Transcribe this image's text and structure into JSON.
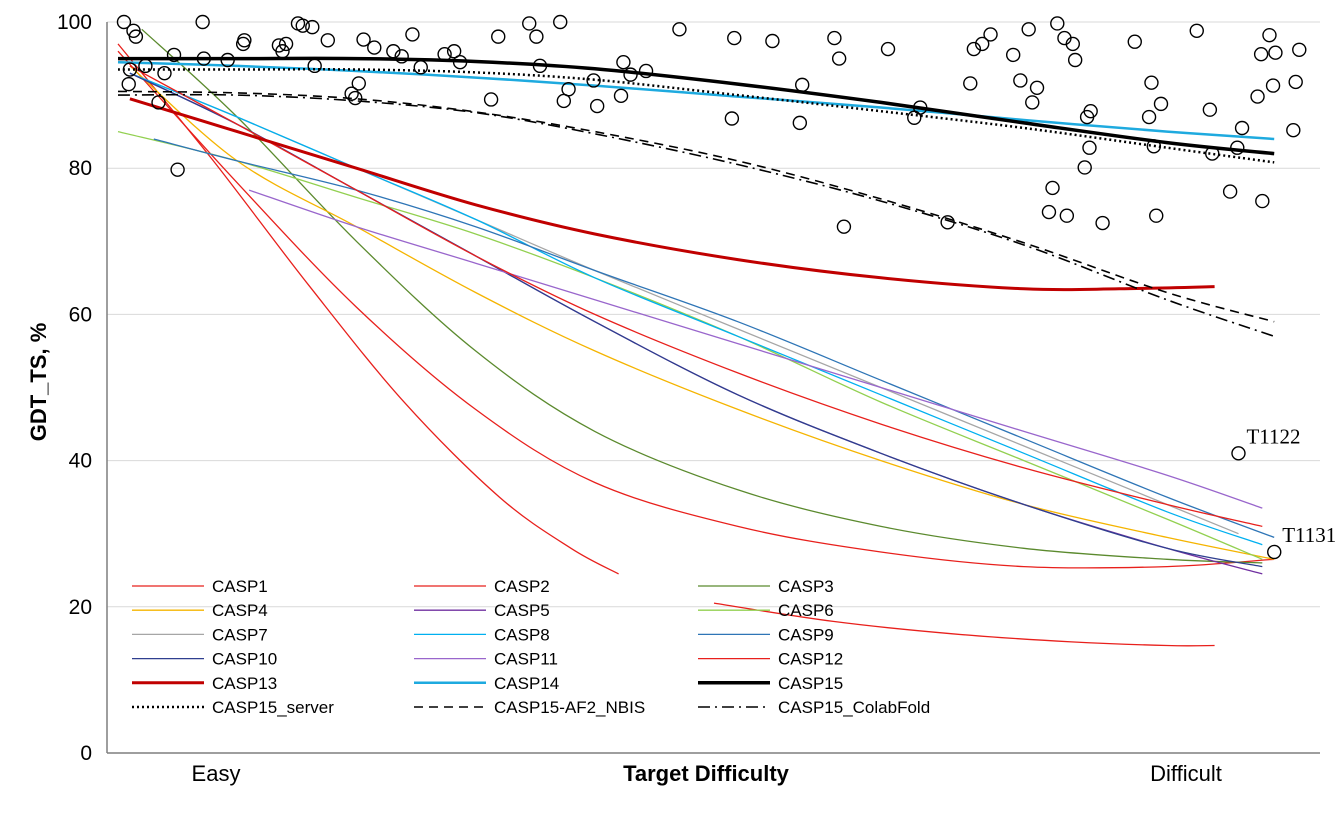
{
  "chart_data": {
    "type": "scatter",
    "ylabel": "GDT_TS, %",
    "xlabel": "Target Difficulty",
    "x_categories": [
      "Easy",
      "Difficult"
    ],
    "x_range": [
      0,
      100
    ],
    "ylim": [
      0,
      100
    ],
    "yticks": [
      0,
      20,
      40,
      60,
      80,
      100
    ],
    "grid": "horizontal",
    "legend_position": "bottom-left",
    "annotations": [
      {
        "text": "T1122",
        "x": 94.0,
        "y": 41
      },
      {
        "text": "T1131",
        "x": 97.0,
        "y": 27.5
      }
    ],
    "series": [
      {
        "name": "CASP1",
        "color": "#e8201c",
        "width": 1.3,
        "dash": "solid",
        "points": [
          [
            0,
            97
          ],
          [
            8,
            81
          ],
          [
            16,
            64
          ],
          [
            24,
            48
          ],
          [
            32,
            35
          ],
          [
            38,
            28
          ],
          [
            42,
            24.5
          ]
        ]
      },
      {
        "name": "CASP2",
        "color": "#e8201c",
        "width": 1.3,
        "dash": "solid",
        "points": [
          [
            0,
            96
          ],
          [
            10,
            78
          ],
          [
            20,
            61
          ],
          [
            30,
            47
          ],
          [
            40,
            37
          ],
          [
            52,
            31
          ],
          [
            64,
            27.5
          ],
          [
            76,
            25.5
          ],
          [
            88,
            25.5
          ],
          [
            97,
            26.5
          ]
        ]
      },
      {
        "name": "CASP3",
        "color": "#5b8a2e",
        "width": 1.3,
        "dash": "solid",
        "points": [
          [
            2,
            99
          ],
          [
            10,
            87
          ],
          [
            20,
            70
          ],
          [
            30,
            55
          ],
          [
            40,
            44
          ],
          [
            52,
            36
          ],
          [
            64,
            31
          ],
          [
            76,
            28
          ],
          [
            88,
            26.5
          ],
          [
            96,
            26
          ]
        ]
      },
      {
        "name": "CASP4",
        "color": "#f5b400",
        "width": 1.3,
        "dash": "solid",
        "points": [
          [
            1,
            94
          ],
          [
            10,
            81
          ],
          [
            20,
            72
          ],
          [
            30,
            63
          ],
          [
            40,
            55
          ],
          [
            52,
            47
          ],
          [
            64,
            40
          ],
          [
            76,
            34
          ],
          [
            88,
            29.5
          ],
          [
            97,
            26.5
          ]
        ]
      },
      {
        "name": "CASP5",
        "color": "#7030a0",
        "width": 1.3,
        "dash": "solid",
        "points": [
          [
            1,
            93
          ],
          [
            10,
            86
          ],
          [
            20,
            77
          ],
          [
            30,
            68
          ],
          [
            40,
            59
          ],
          [
            52,
            49
          ],
          [
            64,
            41
          ],
          [
            76,
            34
          ],
          [
            88,
            28
          ],
          [
            96,
            24.5
          ]
        ]
      },
      {
        "name": "CASP6",
        "color": "#92d050",
        "width": 1.3,
        "dash": "solid",
        "points": [
          [
            0,
            85
          ],
          [
            10,
            81
          ],
          [
            20,
            76
          ],
          [
            30,
            71
          ],
          [
            40,
            65
          ],
          [
            52,
            57
          ],
          [
            64,
            48
          ],
          [
            76,
            40
          ],
          [
            88,
            32
          ],
          [
            96,
            26.5
          ]
        ]
      },
      {
        "name": "CASP7",
        "color": "#a6a6a6",
        "width": 1.3,
        "dash": "solid",
        "points": [
          [
            1,
            93
          ],
          [
            10,
            87
          ],
          [
            20,
            80
          ],
          [
            30,
            73
          ],
          [
            40,
            66
          ],
          [
            52,
            58
          ],
          [
            64,
            50
          ],
          [
            76,
            42
          ],
          [
            88,
            34
          ],
          [
            94,
            30
          ]
        ]
      },
      {
        "name": "CASP8",
        "color": "#00b0f0",
        "width": 1.3,
        "dash": "solid",
        "points": [
          [
            1,
            93
          ],
          [
            10,
            87
          ],
          [
            20,
            80
          ],
          [
            30,
            73
          ],
          [
            40,
            65
          ],
          [
            52,
            57
          ],
          [
            64,
            49
          ],
          [
            76,
            41
          ],
          [
            88,
            33
          ],
          [
            96,
            28.5
          ]
        ]
      },
      {
        "name": "CASP9",
        "color": "#2e75b6",
        "width": 1.3,
        "dash": "solid",
        "points": [
          [
            3,
            84
          ],
          [
            10,
            81
          ],
          [
            20,
            77
          ],
          [
            30,
            72
          ],
          [
            40,
            66
          ],
          [
            52,
            59
          ],
          [
            64,
            51
          ],
          [
            76,
            43
          ],
          [
            88,
            35
          ],
          [
            97,
            29.5
          ]
        ]
      },
      {
        "name": "CASP10",
        "color": "#2f3f8f",
        "width": 1.3,
        "dash": "solid",
        "points": [
          [
            1,
            93
          ],
          [
            10,
            86
          ],
          [
            20,
            77
          ],
          [
            30,
            68
          ],
          [
            40,
            59
          ],
          [
            52,
            49
          ],
          [
            64,
            41
          ],
          [
            76,
            34
          ],
          [
            88,
            28
          ],
          [
            96,
            25.5
          ]
        ]
      },
      {
        "name": "CASP11",
        "color": "#9966cc",
        "width": 1.3,
        "dash": "solid",
        "points": [
          [
            11,
            77
          ],
          [
            20,
            72
          ],
          [
            30,
            67
          ],
          [
            40,
            62
          ],
          [
            52,
            56
          ],
          [
            64,
            50
          ],
          [
            76,
            44
          ],
          [
            88,
            38
          ],
          [
            96,
            33.5
          ]
        ]
      },
      {
        "name": "CASP12",
        "color": "#e8201c",
        "width": 1.3,
        "dash": "solid",
        "points": [
          [
            1,
            94
          ],
          [
            10,
            86
          ],
          [
            20,
            77
          ],
          [
            30,
            68
          ],
          [
            40,
            60
          ],
          [
            52,
            52
          ],
          [
            64,
            45
          ],
          [
            76,
            39
          ],
          [
            88,
            34
          ],
          [
            96,
            31
          ]
        ]
      },
      {
        "name": "CASP12",
        "color": "#e8201c",
        "width": 1.3,
        "dash": "solid",
        "points": [
          [
            50,
            20.5
          ],
          [
            60,
            18
          ],
          [
            70,
            16.3
          ],
          [
            80,
            15.2
          ],
          [
            88,
            14.7
          ],
          [
            92,
            14.7
          ]
        ]
      },
      {
        "name": "CASP13",
        "color": "#c00000",
        "width": 3,
        "dash": "solid",
        "points": [
          [
            1,
            89.5
          ],
          [
            10,
            85
          ],
          [
            20,
            80
          ],
          [
            30,
            75
          ],
          [
            40,
            71
          ],
          [
            52,
            67.5
          ],
          [
            64,
            65
          ],
          [
            76,
            63.5
          ],
          [
            84,
            63.5
          ],
          [
            92,
            63.8
          ]
        ]
      },
      {
        "name": "CASP14",
        "color": "#1eaadf",
        "width": 2.5,
        "dash": "solid",
        "points": [
          [
            0,
            94.5
          ],
          [
            10,
            94
          ],
          [
            20,
            93.3
          ],
          [
            30,
            92.4
          ],
          [
            40,
            91.3
          ],
          [
            52,
            89.8
          ],
          [
            64,
            88.3
          ],
          [
            76,
            86.6
          ],
          [
            88,
            85
          ],
          [
            97,
            84
          ]
        ]
      },
      {
        "name": "CASP15",
        "color": "#000000",
        "width": 3.5,
        "dash": "solid",
        "points": [
          [
            0,
            95
          ],
          [
            10,
            95
          ],
          [
            20,
            95
          ],
          [
            30,
            94.6
          ],
          [
            40,
            93.6
          ],
          [
            52,
            91.5
          ],
          [
            64,
            89
          ],
          [
            76,
            86.2
          ],
          [
            88,
            83.5
          ],
          [
            97,
            82
          ]
        ]
      },
      {
        "name": "CASP15_server",
        "color": "#000000",
        "width": 2.5,
        "dash": "dotted",
        "points": [
          [
            0,
            93.5
          ],
          [
            10,
            93.5
          ],
          [
            20,
            93.5
          ],
          [
            30,
            93.1
          ],
          [
            40,
            92.1
          ],
          [
            52,
            90
          ],
          [
            64,
            87.8
          ],
          [
            76,
            85.5
          ],
          [
            88,
            82.8
          ],
          [
            97,
            80.8
          ]
        ]
      },
      {
        "name": "CASP15-AF2_NBIS",
        "color": "#000000",
        "width": 1.6,
        "dash": "dashed",
        "points": [
          [
            0,
            90.5
          ],
          [
            10,
            90.3
          ],
          [
            20,
            89.5
          ],
          [
            30,
            87.7
          ],
          [
            40,
            85
          ],
          [
            52,
            81
          ],
          [
            64,
            75.8
          ],
          [
            76,
            69.8
          ],
          [
            88,
            63
          ],
          [
            97,
            59
          ]
        ]
      },
      {
        "name": "CASP15_ColabFold",
        "color": "#000000",
        "width": 1.6,
        "dash": "dashdot",
        "points": [
          [
            0,
            90
          ],
          [
            10,
            90
          ],
          [
            20,
            89.2
          ],
          [
            30,
            87.6
          ],
          [
            40,
            84.7
          ],
          [
            52,
            80.5
          ],
          [
            64,
            75.5
          ],
          [
            76,
            69.5
          ],
          [
            88,
            62
          ],
          [
            97,
            57
          ]
        ]
      }
    ],
    "scatter_points": [
      [
        0.5,
        100
      ],
      [
        0.9,
        91.5
      ],
      [
        1.0,
        93.5
      ],
      [
        1.3,
        98.8
      ],
      [
        1.5,
        98
      ],
      [
        2.3,
        94
      ],
      [
        3.4,
        89
      ],
      [
        3.9,
        93
      ],
      [
        4.7,
        95.5
      ],
      [
        5.0,
        79.8
      ],
      [
        7.1,
        100
      ],
      [
        7.2,
        95
      ],
      [
        9.2,
        94.8
      ],
      [
        10.5,
        97
      ],
      [
        10.6,
        97.5
      ],
      [
        13.5,
        96.8
      ],
      [
        13.8,
        96
      ],
      [
        14.1,
        97
      ],
      [
        15.1,
        99.8
      ],
      [
        15.5,
        99.5
      ],
      [
        16.3,
        99.3
      ],
      [
        16.5,
        94
      ],
      [
        17.6,
        97.5
      ],
      [
        19.6,
        90.2
      ],
      [
        19.9,
        89.6
      ],
      [
        20.2,
        91.6
      ],
      [
        20.6,
        97.6
      ],
      [
        21.5,
        96.5
      ],
      [
        23.1,
        96
      ],
      [
        23.8,
        95.3
      ],
      [
        24.7,
        98.3
      ],
      [
        25.4,
        93.8
      ],
      [
        27.4,
        95.6
      ],
      [
        28.2,
        96
      ],
      [
        28.7,
        94.5
      ],
      [
        31.3,
        89.4
      ],
      [
        31.9,
        98
      ],
      [
        34.5,
        99.8
      ],
      [
        35.1,
        98
      ],
      [
        35.4,
        94
      ],
      [
        37.1,
        100
      ],
      [
        37.4,
        89.2
      ],
      [
        37.8,
        90.8
      ],
      [
        39.9,
        92
      ],
      [
        40.2,
        88.5
      ],
      [
        42.2,
        89.9
      ],
      [
        42.4,
        94.5
      ],
      [
        43.0,
        92.8
      ],
      [
        44.3,
        93.3
      ],
      [
        47.1,
        99
      ],
      [
        51.5,
        86.8
      ],
      [
        51.7,
        97.8
      ],
      [
        54.9,
        97.4
      ],
      [
        57.2,
        86.2
      ],
      [
        57.4,
        91.4
      ],
      [
        60.1,
        97.8
      ],
      [
        60.5,
        95
      ],
      [
        60.9,
        72
      ],
      [
        64.6,
        96.3
      ],
      [
        66.8,
        86.9
      ],
      [
        67.3,
        88.3
      ],
      [
        69.6,
        72.6
      ],
      [
        71.5,
        91.6
      ],
      [
        71.8,
        96.3
      ],
      [
        72.5,
        97
      ],
      [
        73.2,
        98.3
      ],
      [
        75.1,
        95.5
      ],
      [
        75.7,
        92
      ],
      [
        76.4,
        99
      ],
      [
        76.7,
        89
      ],
      [
        77.1,
        91
      ],
      [
        78.1,
        74
      ],
      [
        78.4,
        77.3
      ],
      [
        78.8,
        99.8
      ],
      [
        79.4,
        97.8
      ],
      [
        79.6,
        73.5
      ],
      [
        80.1,
        97
      ],
      [
        80.3,
        94.8
      ],
      [
        81.1,
        80.1
      ],
      [
        81.3,
        87
      ],
      [
        81.5,
        82.8
      ],
      [
        81.6,
        87.8
      ],
      [
        82.6,
        72.5
      ],
      [
        85.3,
        97.3
      ],
      [
        86.5,
        87
      ],
      [
        86.7,
        91.7
      ],
      [
        86.9,
        83
      ],
      [
        87.1,
        73.5
      ],
      [
        87.5,
        88.8
      ],
      [
        90.5,
        98.8
      ],
      [
        91.6,
        88
      ],
      [
        91.8,
        82
      ],
      [
        93.3,
        76.8
      ],
      [
        93.9,
        82.8
      ],
      [
        94.3,
        85.5
      ],
      [
        95.6,
        89.8
      ],
      [
        95.9,
        95.6
      ],
      [
        96.0,
        75.5
      ],
      [
        96.6,
        98.2
      ],
      [
        96.9,
        91.3
      ],
      [
        97.1,
        95.8
      ],
      [
        98.6,
        85.2
      ],
      [
        98.8,
        91.8
      ],
      [
        99.1,
        96.2
      ],
      [
        94.0,
        41
      ],
      [
        97.0,
        27.5
      ]
    ]
  }
}
